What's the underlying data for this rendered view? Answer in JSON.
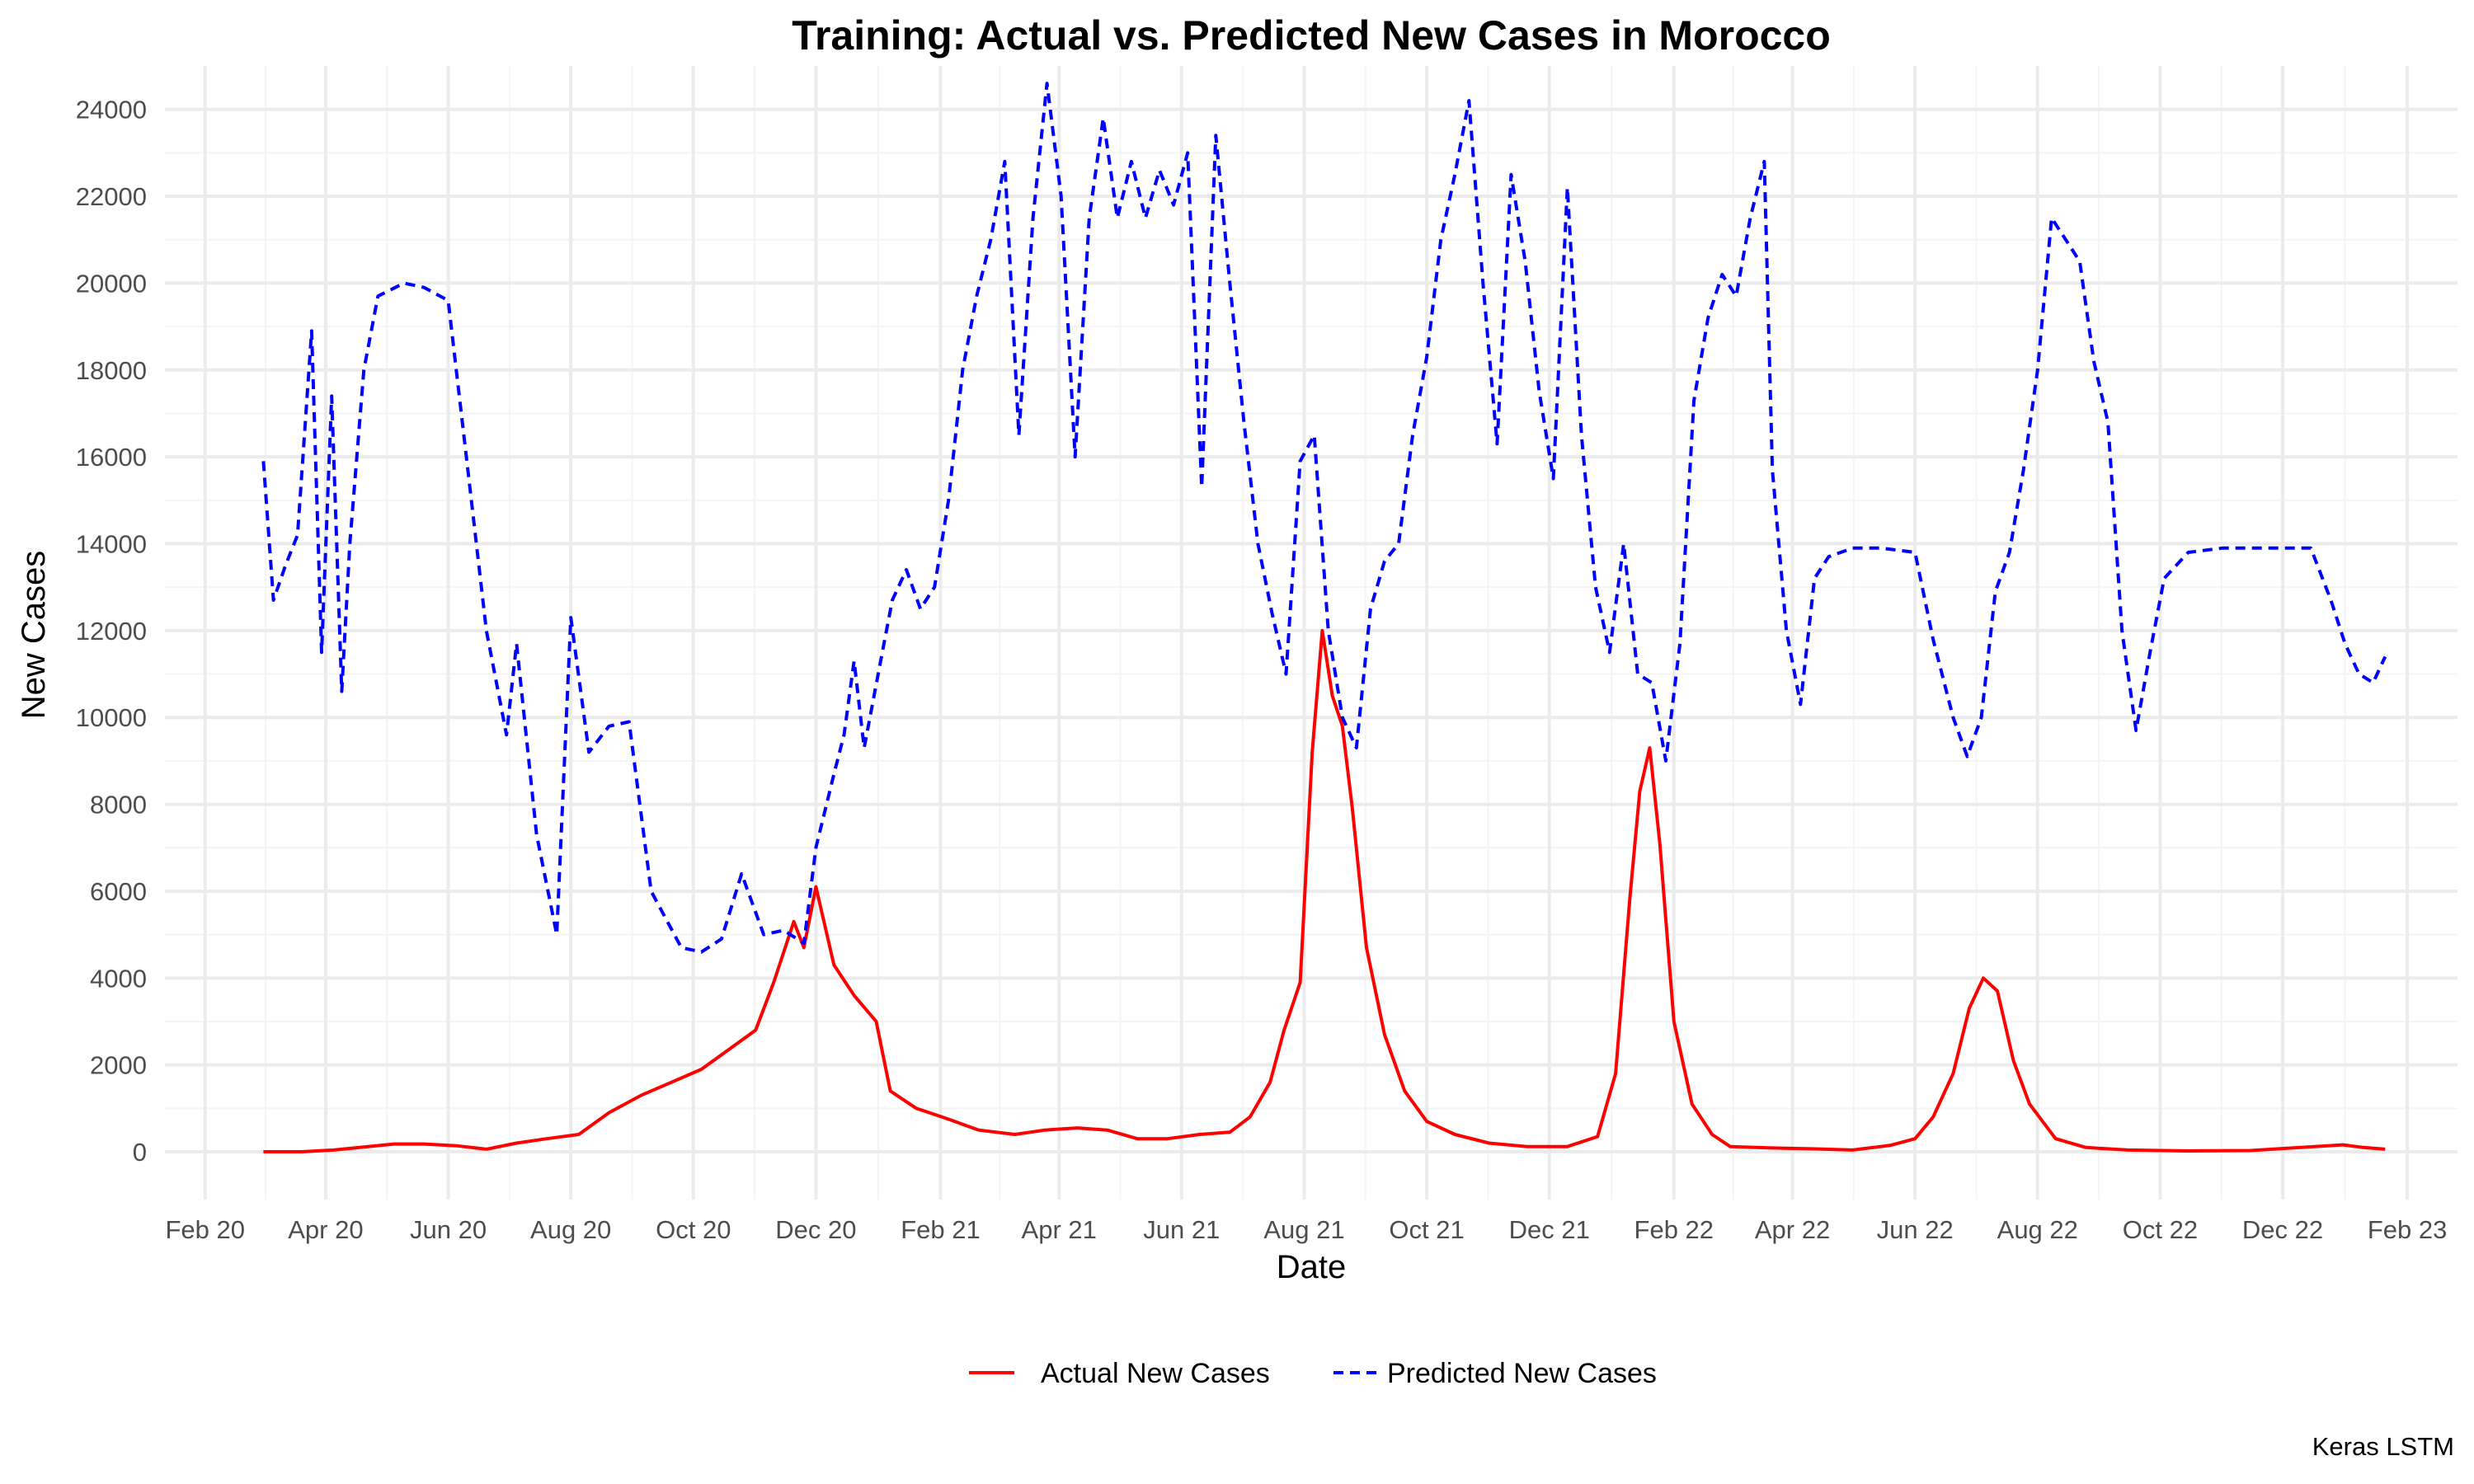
{
  "chart_data": {
    "type": "line",
    "title": "Training: Actual vs. Predicted New Cases in Morocco",
    "xlabel": "Date",
    "ylabel": "New Cases",
    "caption": "Keras LSTM",
    "x_ticks": [
      "Feb 20",
      "Apr 20",
      "Jun 20",
      "Aug 20",
      "Oct 20",
      "Dec 20",
      "Feb 21",
      "Apr 21",
      "Jun 21",
      "Aug 21",
      "Oct 21",
      "Dec 21",
      "Feb 22",
      "Apr 22",
      "Jun 22",
      "Aug 22",
      "Oct 22",
      "Dec 22",
      "Feb 23"
    ],
    "y_ticks": [
      0,
      2000,
      4000,
      6000,
      8000,
      10000,
      12000,
      14000,
      16000,
      18000,
      20000,
      22000,
      24000
    ],
    "xlim": [
      "2020-01-12",
      "2023-02-26"
    ],
    "ylim": [
      -1100,
      25000
    ],
    "grid": true,
    "legend_position": "bottom",
    "series": [
      {
        "name": "Actual New Cases",
        "color": "#ff0000",
        "style": "solid",
        "points": [
          [
            "2020-03-01",
            0
          ],
          [
            "2020-03-20",
            0
          ],
          [
            "2020-04-05",
            40
          ],
          [
            "2020-04-20",
            110
          ],
          [
            "2020-05-05",
            180
          ],
          [
            "2020-05-20",
            180
          ],
          [
            "2020-06-05",
            140
          ],
          [
            "2020-06-20",
            60
          ],
          [
            "2020-07-05",
            200
          ],
          [
            "2020-07-20",
            300
          ],
          [
            "2020-08-05",
            400
          ],
          [
            "2020-08-20",
            900
          ],
          [
            "2020-09-05",
            1300
          ],
          [
            "2020-09-20",
            1600
          ],
          [
            "2020-10-05",
            1900
          ],
          [
            "2020-10-20",
            2400
          ],
          [
            "2020-11-01",
            2800
          ],
          [
            "2020-11-10",
            3900
          ],
          [
            "2020-11-20",
            5300
          ],
          [
            "2020-11-25",
            4700
          ],
          [
            "2020-12-01",
            6100
          ],
          [
            "2020-12-10",
            4300
          ],
          [
            "2020-12-20",
            3600
          ],
          [
            "2020-12-31",
            3000
          ],
          [
            "2021-01-07",
            1400
          ],
          [
            "2021-01-20",
            1000
          ],
          [
            "2021-02-05",
            750
          ],
          [
            "2021-02-20",
            500
          ],
          [
            "2021-03-10",
            400
          ],
          [
            "2021-03-25",
            500
          ],
          [
            "2021-04-10",
            550
          ],
          [
            "2021-04-25",
            500
          ],
          [
            "2021-05-10",
            300
          ],
          [
            "2021-05-25",
            300
          ],
          [
            "2021-06-10",
            400
          ],
          [
            "2021-06-25",
            450
          ],
          [
            "2021-07-05",
            800
          ],
          [
            "2021-07-15",
            1600
          ],
          [
            "2021-07-22",
            2800
          ],
          [
            "2021-07-30",
            3900
          ],
          [
            "2021-08-05",
            9200
          ],
          [
            "2021-08-10",
            12000
          ],
          [
            "2021-08-15",
            10500
          ],
          [
            "2021-08-20",
            9800
          ],
          [
            "2021-08-25",
            7900
          ],
          [
            "2021-09-01",
            4700
          ],
          [
            "2021-09-10",
            2700
          ],
          [
            "2021-09-20",
            1400
          ],
          [
            "2021-10-01",
            700
          ],
          [
            "2021-10-15",
            400
          ],
          [
            "2021-11-01",
            200
          ],
          [
            "2021-11-20",
            120
          ],
          [
            "2021-12-10",
            120
          ],
          [
            "2021-12-25",
            350
          ],
          [
            "2022-01-03",
            1800
          ],
          [
            "2022-01-10",
            5800
          ],
          [
            "2022-01-15",
            8300
          ],
          [
            "2022-01-20",
            9300
          ],
          [
            "2022-01-25",
            7100
          ],
          [
            "2022-02-01",
            3000
          ],
          [
            "2022-02-10",
            1100
          ],
          [
            "2022-02-20",
            400
          ],
          [
            "2022-03-01",
            120
          ],
          [
            "2022-03-20",
            90
          ],
          [
            "2022-04-10",
            70
          ],
          [
            "2022-05-01",
            40
          ],
          [
            "2022-05-20",
            150
          ],
          [
            "2022-06-01",
            300
          ],
          [
            "2022-06-10",
            800
          ],
          [
            "2022-06-20",
            1800
          ],
          [
            "2022-06-28",
            3300
          ],
          [
            "2022-07-05",
            4000
          ],
          [
            "2022-07-12",
            3700
          ],
          [
            "2022-07-20",
            2100
          ],
          [
            "2022-07-28",
            1100
          ],
          [
            "2022-08-10",
            300
          ],
          [
            "2022-08-25",
            100
          ],
          [
            "2022-09-15",
            40
          ],
          [
            "2022-10-15",
            20
          ],
          [
            "2022-11-15",
            30
          ],
          [
            "2022-12-10",
            100
          ],
          [
            "2022-12-31",
            160
          ],
          [
            "2023-01-10",
            100
          ],
          [
            "2023-01-21",
            60
          ]
        ]
      },
      {
        "name": "Predicted New Cases",
        "color": "#0000ff",
        "style": "dashed",
        "points": [
          [
            "2020-03-01",
            15900
          ],
          [
            "2020-03-06",
            12700
          ],
          [
            "2020-03-12",
            13500
          ],
          [
            "2020-03-18",
            14200
          ],
          [
            "2020-03-25",
            18900
          ],
          [
            "2020-03-30",
            11500
          ],
          [
            "2020-04-04",
            17400
          ],
          [
            "2020-04-09",
            10600
          ],
          [
            "2020-04-13",
            14000
          ],
          [
            "2020-04-20",
            18000
          ],
          [
            "2020-04-27",
            19700
          ],
          [
            "2020-05-10",
            20000
          ],
          [
            "2020-05-20",
            19900
          ],
          [
            "2020-06-01",
            19600
          ],
          [
            "2020-06-10",
            16000
          ],
          [
            "2020-06-20",
            12000
          ],
          [
            "2020-06-30",
            9600
          ],
          [
            "2020-07-05",
            11700
          ],
          [
            "2020-07-15",
            7300
          ],
          [
            "2020-07-25",
            5000
          ],
          [
            "2020-08-01",
            12300
          ],
          [
            "2020-08-10",
            9200
          ],
          [
            "2020-08-20",
            9800
          ],
          [
            "2020-08-30",
            9900
          ],
          [
            "2020-09-10",
            6000
          ],
          [
            "2020-09-25",
            4700
          ],
          [
            "2020-10-05",
            4600
          ],
          [
            "2020-10-15",
            4900
          ],
          [
            "2020-10-25",
            6400
          ],
          [
            "2020-11-05",
            5000
          ],
          [
            "2020-11-15",
            5100
          ],
          [
            "2020-11-25",
            4800
          ],
          [
            "2020-12-01",
            7000
          ],
          [
            "2020-12-10",
            8700
          ],
          [
            "2020-12-15",
            9600
          ],
          [
            "2020-12-20",
            11300
          ],
          [
            "2020-12-25",
            9300
          ],
          [
            "2021-01-01",
            11000
          ],
          [
            "2021-01-08",
            12700
          ],
          [
            "2021-01-15",
            13400
          ],
          [
            "2021-01-22",
            12500
          ],
          [
            "2021-01-29",
            13000
          ],
          [
            "2021-02-05",
            15000
          ],
          [
            "2021-02-12",
            18000
          ],
          [
            "2021-02-19",
            19700
          ],
          [
            "2021-02-26",
            21000
          ],
          [
            "2021-03-05",
            22800
          ],
          [
            "2021-03-12",
            16500
          ],
          [
            "2021-03-19",
            21500
          ],
          [
            "2021-03-26",
            24600
          ],
          [
            "2021-04-02",
            22000
          ],
          [
            "2021-04-09",
            16000
          ],
          [
            "2021-04-16",
            21500
          ],
          [
            "2021-04-23",
            23800
          ],
          [
            "2021-04-30",
            21500
          ],
          [
            "2021-05-07",
            22800
          ],
          [
            "2021-05-14",
            21500
          ],
          [
            "2021-05-21",
            22600
          ],
          [
            "2021-05-28",
            21800
          ],
          [
            "2021-06-04",
            23000
          ],
          [
            "2021-06-11",
            15300
          ],
          [
            "2021-06-18",
            23400
          ],
          [
            "2021-06-25",
            20000
          ],
          [
            "2021-07-02",
            16800
          ],
          [
            "2021-07-09",
            14000
          ],
          [
            "2021-07-16",
            12400
          ],
          [
            "2021-07-23",
            11000
          ],
          [
            "2021-07-30",
            15900
          ],
          [
            "2021-08-06",
            16500
          ],
          [
            "2021-08-13",
            12000
          ],
          [
            "2021-08-20",
            10000
          ],
          [
            "2021-08-27",
            9300
          ],
          [
            "2021-09-03",
            12500
          ],
          [
            "2021-09-10",
            13600
          ],
          [
            "2021-09-17",
            14000
          ],
          [
            "2021-09-24",
            16500
          ],
          [
            "2021-10-01",
            18300
          ],
          [
            "2021-10-08",
            21000
          ],
          [
            "2021-10-15",
            22500
          ],
          [
            "2021-10-22",
            24200
          ],
          [
            "2021-10-29",
            20000
          ],
          [
            "2021-11-05",
            16300
          ],
          [
            "2021-11-12",
            22500
          ],
          [
            "2021-11-19",
            20500
          ],
          [
            "2021-11-26",
            17500
          ],
          [
            "2021-12-03",
            15500
          ],
          [
            "2021-12-10",
            22200
          ],
          [
            "2021-12-17",
            16500
          ],
          [
            "2021-12-24",
            13000
          ],
          [
            "2021-12-31",
            11500
          ],
          [
            "2022-01-07",
            14000
          ],
          [
            "2022-01-14",
            11000
          ],
          [
            "2022-01-21",
            10800
          ],
          [
            "2022-01-28",
            9000
          ],
          [
            "2022-02-04",
            11700
          ],
          [
            "2022-02-11",
            17300
          ],
          [
            "2022-02-18",
            19200
          ],
          [
            "2022-02-25",
            20200
          ],
          [
            "2022-03-04",
            19700
          ],
          [
            "2022-03-11",
            21500
          ],
          [
            "2022-03-18",
            22800
          ],
          [
            "2022-03-22",
            15700
          ],
          [
            "2022-03-29",
            12000
          ],
          [
            "2022-04-05",
            10300
          ],
          [
            "2022-04-12",
            13200
          ],
          [
            "2022-04-19",
            13700
          ],
          [
            "2022-05-01",
            13900
          ],
          [
            "2022-05-15",
            13900
          ],
          [
            "2022-06-01",
            13800
          ],
          [
            "2022-06-10",
            11800
          ],
          [
            "2022-06-20",
            10000
          ],
          [
            "2022-06-27",
            9100
          ],
          [
            "2022-07-04",
            10000
          ],
          [
            "2022-07-11",
            12900
          ],
          [
            "2022-07-18",
            13800
          ],
          [
            "2022-07-25",
            15700
          ],
          [
            "2022-08-01",
            18000
          ],
          [
            "2022-08-08",
            21500
          ],
          [
            "2022-08-15",
            21000
          ],
          [
            "2022-08-22",
            20500
          ],
          [
            "2022-08-29",
            18200
          ],
          [
            "2022-09-05",
            16800
          ],
          [
            "2022-09-12",
            12000
          ],
          [
            "2022-09-19",
            9700
          ],
          [
            "2022-09-26",
            11500
          ],
          [
            "2022-10-03",
            13200
          ],
          [
            "2022-10-15",
            13800
          ],
          [
            "2022-11-01",
            13900
          ],
          [
            "2022-12-01",
            13900
          ],
          [
            "2022-12-15",
            13900
          ],
          [
            "2022-12-25",
            12700
          ],
          [
            "2023-01-01",
            11700
          ],
          [
            "2023-01-08",
            11000
          ],
          [
            "2023-01-15",
            10800
          ],
          [
            "2023-01-21",
            11400
          ]
        ]
      }
    ]
  }
}
